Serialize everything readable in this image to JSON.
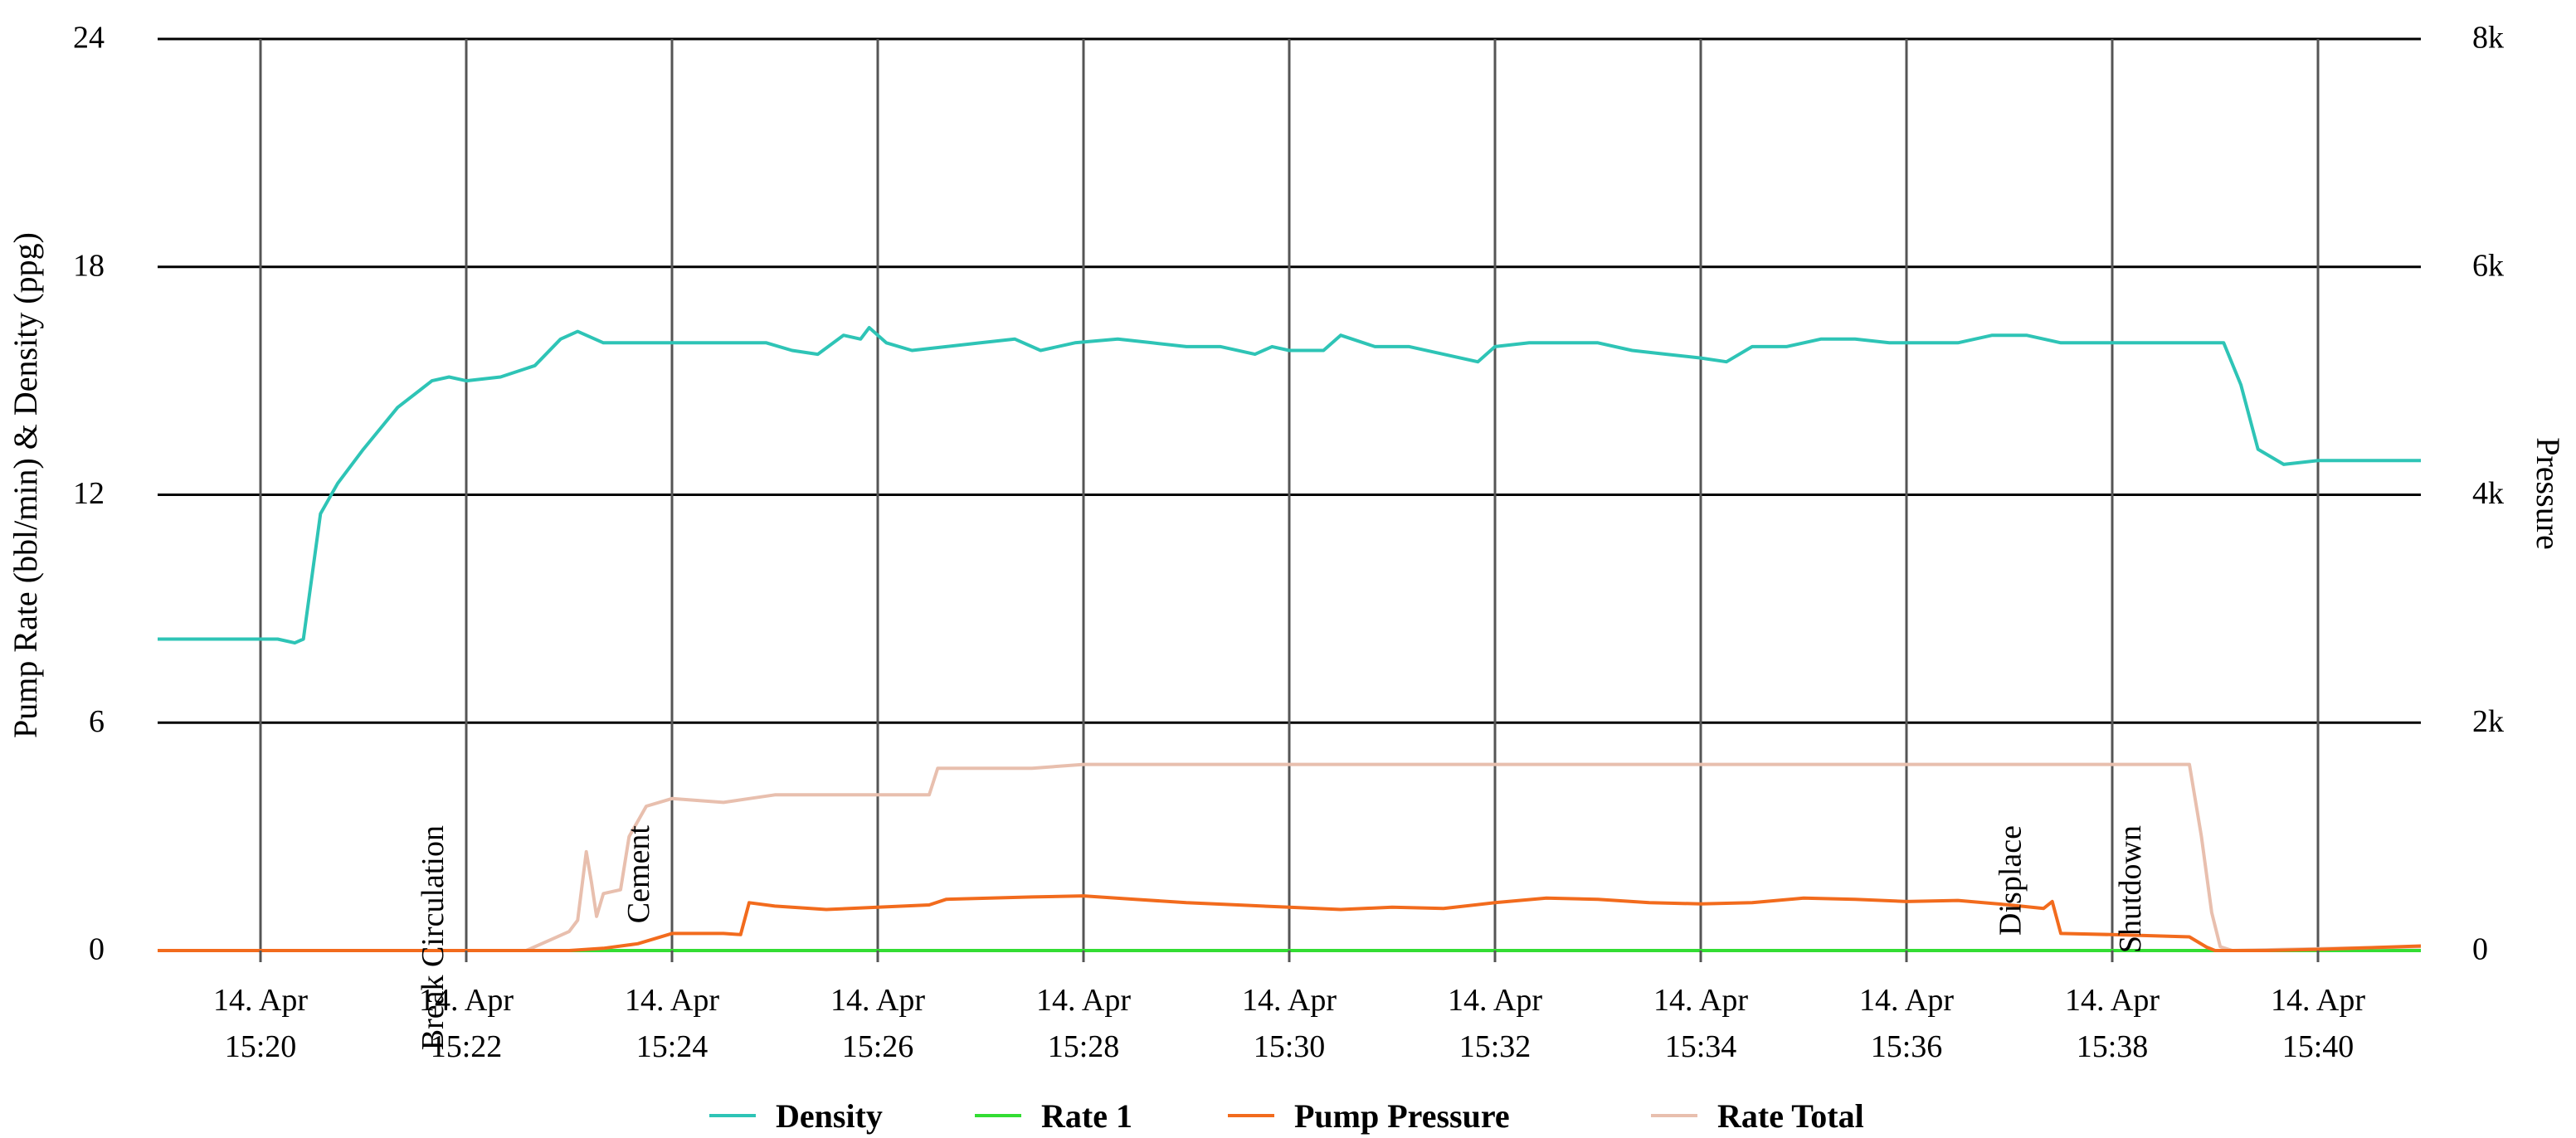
{
  "chart_data": {
    "type": "line",
    "title": "",
    "ylabel_left": "Pump Rate (bbl/min) & Density (ppg)",
    "ylabel_right": "Pressure",
    "grid": true,
    "legend_position": "bottom-center",
    "x_range": [
      "2024-04-14T15:19:00",
      "2024-04-14T15:41:00"
    ],
    "x_ticks": [
      {
        "t": "2024-04-14T15:20:00",
        "line1": "14. Apr",
        "line2": "15:20"
      },
      {
        "t": "2024-04-14T15:22:00",
        "line1": "14. Apr",
        "line2": "15:22"
      },
      {
        "t": "2024-04-14T15:24:00",
        "line1": "14. Apr",
        "line2": "15:24"
      },
      {
        "t": "2024-04-14T15:26:00",
        "line1": "14. Apr",
        "line2": "15:26"
      },
      {
        "t": "2024-04-14T15:28:00",
        "line1": "14. Apr",
        "line2": "15:28"
      },
      {
        "t": "2024-04-14T15:30:00",
        "line1": "14. Apr",
        "line2": "15:30"
      },
      {
        "t": "2024-04-14T15:32:00",
        "line1": "14. Apr",
        "line2": "15:32"
      },
      {
        "t": "2024-04-14T15:34:00",
        "line1": "14. Apr",
        "line2": "15:34"
      },
      {
        "t": "2024-04-14T15:36:00",
        "line1": "14. Apr",
        "line2": "15:36"
      },
      {
        "t": "2024-04-14T15:38:00",
        "line1": "14. Apr",
        "line2": "15:38"
      },
      {
        "t": "2024-04-14T15:40:00",
        "line1": "14. Apr",
        "line2": "15:40"
      }
    ],
    "y_left": {
      "min": 0,
      "max": 24,
      "ticks": [
        0,
        6,
        12,
        18,
        24
      ],
      "tick_labels": [
        "0",
        "6",
        "12",
        "18",
        "24"
      ]
    },
    "y_right": {
      "min": 0,
      "max": 8000,
      "ticks": [
        0,
        2000,
        4000,
        6000,
        8000
      ],
      "tick_labels": [
        "0",
        "2k",
        "4k",
        "6k",
        "8k"
      ]
    },
    "annotations": [
      {
        "t": "2024-04-14T15:22:00",
        "text": "Break Circulation"
      },
      {
        "t": "2024-04-14T15:24:00",
        "text": "Cement"
      },
      {
        "t": "2024-04-14T15:37:20",
        "text": "Displace"
      },
      {
        "t": "2024-04-14T15:38:30",
        "text": "Shutdown"
      }
    ],
    "series": [
      {
        "name": "Density",
        "axis": "left",
        "color": "#2ec4b6",
        "points": [
          [
            "2024-04-14T15:19:00",
            8.2
          ],
          [
            "2024-04-14T15:19:20",
            8.2
          ],
          [
            "2024-04-14T15:19:40",
            8.2
          ],
          [
            "2024-04-14T15:20:10",
            8.2
          ],
          [
            "2024-04-14T15:20:20",
            8.1
          ],
          [
            "2024-04-14T15:20:25",
            8.2
          ],
          [
            "2024-04-14T15:20:35",
            11.5
          ],
          [
            "2024-04-14T15:20:45",
            12.3
          ],
          [
            "2024-04-14T15:21:00",
            13.2
          ],
          [
            "2024-04-14T15:21:20",
            14.3
          ],
          [
            "2024-04-14T15:21:40",
            15.0
          ],
          [
            "2024-04-14T15:21:50",
            15.1
          ],
          [
            "2024-04-14T15:22:00",
            15.0
          ],
          [
            "2024-04-14T15:22:20",
            15.1
          ],
          [
            "2024-04-14T15:22:40",
            15.4
          ],
          [
            "2024-04-14T15:22:55",
            16.1
          ],
          [
            "2024-04-14T15:23:05",
            16.3
          ],
          [
            "2024-04-14T15:23:20",
            16.0
          ],
          [
            "2024-04-14T15:23:40",
            16.0
          ],
          [
            "2024-04-14T15:24:00",
            16.0
          ],
          [
            "2024-04-14T15:24:30",
            16.0
          ],
          [
            "2024-04-14T15:24:55",
            16.0
          ],
          [
            "2024-04-14T15:25:10",
            15.8
          ],
          [
            "2024-04-14T15:25:25",
            15.7
          ],
          [
            "2024-04-14T15:25:40",
            16.2
          ],
          [
            "2024-04-14T15:25:50",
            16.1
          ],
          [
            "2024-04-14T15:25:55",
            16.4
          ],
          [
            "2024-04-14T15:26:05",
            16.0
          ],
          [
            "2024-04-14T15:26:20",
            15.8
          ],
          [
            "2024-04-14T15:26:40",
            15.9
          ],
          [
            "2024-04-14T15:27:00",
            16.0
          ],
          [
            "2024-04-14T15:27:20",
            16.1
          ],
          [
            "2024-04-14T15:27:35",
            15.8
          ],
          [
            "2024-04-14T15:27:55",
            16.0
          ],
          [
            "2024-04-14T15:28:20",
            16.1
          ],
          [
            "2024-04-14T15:28:40",
            16.0
          ],
          [
            "2024-04-14T15:29:00",
            15.9
          ],
          [
            "2024-04-14T15:29:20",
            15.9
          ],
          [
            "2024-04-14T15:29:40",
            15.7
          ],
          [
            "2024-04-14T15:29:50",
            15.9
          ],
          [
            "2024-04-14T15:30:00",
            15.8
          ],
          [
            "2024-04-14T15:30:20",
            15.8
          ],
          [
            "2024-04-14T15:30:30",
            16.2
          ],
          [
            "2024-04-14T15:30:50",
            15.9
          ],
          [
            "2024-04-14T15:31:10",
            15.9
          ],
          [
            "2024-04-14T15:31:30",
            15.7
          ],
          [
            "2024-04-14T15:31:50",
            15.5
          ],
          [
            "2024-04-14T15:32:00",
            15.9
          ],
          [
            "2024-04-14T15:32:20",
            16.0
          ],
          [
            "2024-04-14T15:32:40",
            16.0
          ],
          [
            "2024-04-14T15:33:00",
            16.0
          ],
          [
            "2024-04-14T15:33:20",
            15.8
          ],
          [
            "2024-04-14T15:33:40",
            15.7
          ],
          [
            "2024-04-14T15:34:00",
            15.6
          ],
          [
            "2024-04-14T15:34:15",
            15.5
          ],
          [
            "2024-04-14T15:34:30",
            15.9
          ],
          [
            "2024-04-14T15:34:50",
            15.9
          ],
          [
            "2024-04-14T15:35:10",
            16.1
          ],
          [
            "2024-04-14T15:35:30",
            16.1
          ],
          [
            "2024-04-14T15:35:50",
            16.0
          ],
          [
            "2024-04-14T15:36:10",
            16.0
          ],
          [
            "2024-04-14T15:36:30",
            16.0
          ],
          [
            "2024-04-14T15:36:50",
            16.2
          ],
          [
            "2024-04-14T15:37:10",
            16.2
          ],
          [
            "2024-04-14T15:37:30",
            16.0
          ],
          [
            "2024-04-14T15:37:50",
            16.0
          ],
          [
            "2024-04-14T15:38:10",
            16.0
          ],
          [
            "2024-04-14T15:38:30",
            16.0
          ],
          [
            "2024-04-14T15:38:50",
            16.0
          ],
          [
            "2024-04-14T15:39:05",
            16.0
          ],
          [
            "2024-04-14T15:39:15",
            14.9
          ],
          [
            "2024-04-14T15:39:25",
            13.2
          ],
          [
            "2024-04-14T15:39:40",
            12.8
          ],
          [
            "2024-04-14T15:40:00",
            12.9
          ],
          [
            "2024-04-14T15:40:20",
            12.9
          ],
          [
            "2024-04-14T15:41:00",
            12.9
          ]
        ]
      },
      {
        "name": "Rate 1",
        "axis": "left",
        "color": "#33dd33",
        "points": [
          [
            "2024-04-14T15:19:00",
            0
          ],
          [
            "2024-04-14T15:41:00",
            0
          ]
        ]
      },
      {
        "name": "Pump Pressure",
        "axis": "right",
        "color": "#f26b1d",
        "points": [
          [
            "2024-04-14T15:19:00",
            0
          ],
          [
            "2024-04-14T15:23:00",
            0
          ],
          [
            "2024-04-14T15:23:20",
            20
          ],
          [
            "2024-04-14T15:23:40",
            60
          ],
          [
            "2024-04-14T15:24:00",
            150
          ],
          [
            "2024-04-14T15:24:30",
            150
          ],
          [
            "2024-04-14T15:24:40",
            140
          ],
          [
            "2024-04-14T15:24:45",
            420
          ],
          [
            "2024-04-14T15:25:00",
            390
          ],
          [
            "2024-04-14T15:25:30",
            360
          ],
          [
            "2024-04-14T15:26:00",
            380
          ],
          [
            "2024-04-14T15:26:30",
            400
          ],
          [
            "2024-04-14T15:26:40",
            450
          ],
          [
            "2024-04-14T15:27:30",
            470
          ],
          [
            "2024-04-14T15:28:00",
            480
          ],
          [
            "2024-04-14T15:28:30",
            450
          ],
          [
            "2024-04-14T15:29:00",
            420
          ],
          [
            "2024-04-14T15:29:30",
            400
          ],
          [
            "2024-04-14T15:30:00",
            380
          ],
          [
            "2024-04-14T15:30:30",
            360
          ],
          [
            "2024-04-14T15:31:00",
            380
          ],
          [
            "2024-04-14T15:31:30",
            370
          ],
          [
            "2024-04-14T15:32:00",
            420
          ],
          [
            "2024-04-14T15:32:30",
            460
          ],
          [
            "2024-04-14T15:33:00",
            450
          ],
          [
            "2024-04-14T15:33:30",
            420
          ],
          [
            "2024-04-14T15:34:00",
            410
          ],
          [
            "2024-04-14T15:34:30",
            420
          ],
          [
            "2024-04-14T15:35:00",
            460
          ],
          [
            "2024-04-14T15:35:30",
            450
          ],
          [
            "2024-04-14T15:36:00",
            430
          ],
          [
            "2024-04-14T15:36:30",
            440
          ],
          [
            "2024-04-14T15:37:00",
            400
          ],
          [
            "2024-04-14T15:37:20",
            370
          ],
          [
            "2024-04-14T15:37:25",
            430
          ],
          [
            "2024-04-14T15:37:30",
            150
          ],
          [
            "2024-04-14T15:38:00",
            140
          ],
          [
            "2024-04-14T15:38:45",
            120
          ],
          [
            "2024-04-14T15:38:55",
            30
          ],
          [
            "2024-04-14T15:39:00",
            0
          ],
          [
            "2024-04-14T15:39:30",
            0
          ],
          [
            "2024-04-14T15:40:00",
            10
          ],
          [
            "2024-04-14T15:41:00",
            40
          ]
        ]
      },
      {
        "name": "Rate Total",
        "axis": "left",
        "color": "#e8bfae",
        "points": [
          [
            "2024-04-14T15:19:00",
            0
          ],
          [
            "2024-04-14T15:22:35",
            0
          ],
          [
            "2024-04-14T15:22:50",
            0.3
          ],
          [
            "2024-04-14T15:23:00",
            0.5
          ],
          [
            "2024-04-14T15:23:05",
            0.8
          ],
          [
            "2024-04-14T15:23:10",
            2.6
          ],
          [
            "2024-04-14T15:23:13",
            1.8
          ],
          [
            "2024-04-14T15:23:16",
            0.9
          ],
          [
            "2024-04-14T15:23:20",
            1.5
          ],
          [
            "2024-04-14T15:23:30",
            1.6
          ],
          [
            "2024-04-14T15:23:35",
            3.0
          ],
          [
            "2024-04-14T15:23:45",
            3.8
          ],
          [
            "2024-04-14T15:24:00",
            4.0
          ],
          [
            "2024-04-14T15:24:30",
            3.9
          ],
          [
            "2024-04-14T15:24:45",
            4.0
          ],
          [
            "2024-04-14T15:25:00",
            4.1
          ],
          [
            "2024-04-14T15:26:00",
            4.1
          ],
          [
            "2024-04-14T15:26:30",
            4.1
          ],
          [
            "2024-04-14T15:26:35",
            4.8
          ],
          [
            "2024-04-14T15:27:30",
            4.8
          ],
          [
            "2024-04-14T15:28:00",
            4.9
          ],
          [
            "2024-04-14T15:30:00",
            4.9
          ],
          [
            "2024-04-14T15:32:00",
            4.9
          ],
          [
            "2024-04-14T15:34:00",
            4.9
          ],
          [
            "2024-04-14T15:36:00",
            4.9
          ],
          [
            "2024-04-14T15:38:00",
            4.9
          ],
          [
            "2024-04-14T15:38:45",
            4.9
          ],
          [
            "2024-04-14T15:38:52",
            3.0
          ],
          [
            "2024-04-14T15:38:58",
            1.0
          ],
          [
            "2024-04-14T15:39:03",
            0.1
          ],
          [
            "2024-04-14T15:39:10",
            0
          ],
          [
            "2024-04-14T15:40:00",
            0.05
          ],
          [
            "2024-04-14T15:41:00",
            0.1
          ]
        ]
      }
    ]
  }
}
